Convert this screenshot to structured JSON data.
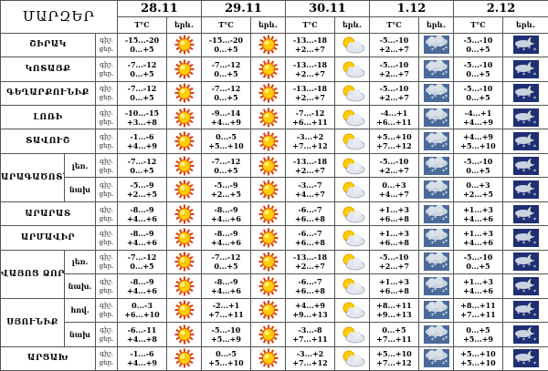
{
  "header": {
    "title": "ՄԱՐԶԵՐ",
    "dates": [
      "28.11",
      "29.11",
      "30.11",
      "1.12",
      "2.12"
    ],
    "temp_label": "T°C",
    "icon_label": "երև.",
    "night_label": "գիշ.",
    "day_label": "ցեր."
  },
  "icons": {
    "sunny": "sun-icon",
    "partly": "sun-cloud-icon",
    "snow": "snow-cloud-icon",
    "snow_moon": "moon-snow-icon"
  },
  "rows": [
    {
      "region": "ՇԻՐԱԿ",
      "sub": "",
      "t": [
        [
          "-15...-20",
          "0...+5"
        ],
        [
          "-15...-20",
          "0...+5"
        ],
        [
          "-13...-18",
          "+2...+7"
        ],
        [
          "-5...-10",
          "+2...+7"
        ],
        [
          "-5...-10",
          "0...+5"
        ]
      ]
    },
    {
      "region": "ԿՈՏԱՅՔ",
      "sub": "",
      "t": [
        [
          "-7...-12",
          "0...+5"
        ],
        [
          "-7...-12",
          "0...+5"
        ],
        [
          "-13...-18",
          "+2...+7"
        ],
        [
          "-5...-10",
          "+2...+7"
        ],
        [
          "-5...-10",
          "0...+5"
        ]
      ]
    },
    {
      "region": "ԳԵՂԱՐՔՈՒՆԻՔ",
      "sub": "",
      "t": [
        [
          "-7...-12",
          "0...+5"
        ],
        [
          "-7...-12",
          "0...+5"
        ],
        [
          "-13...-18",
          "+2...+7"
        ],
        [
          "-5...-10",
          "+2...+7"
        ],
        [
          "-5...-10",
          "0...+5"
        ]
      ]
    },
    {
      "region": "ԼՈՌԻ",
      "sub": "",
      "t": [
        [
          "-10...-15",
          "+3...+8"
        ],
        [
          "-9...-14",
          "+4...+9"
        ],
        [
          "-7...-12",
          "+6...+11"
        ],
        [
          "-4...+1",
          "+6...+11"
        ],
        [
          "-4...+1",
          "+4...+9"
        ]
      ]
    },
    {
      "region": "ՏԱՎՈՒՇ",
      "sub": "",
      "t": [
        [
          "-1...-6",
          "+4...+9"
        ],
        [
          "0...-5",
          "+5...+10"
        ],
        [
          "-3...+2",
          "+7...+12"
        ],
        [
          "+5...+10",
          "+7...+12"
        ],
        [
          "+4...+9",
          "+5...+10"
        ]
      ]
    },
    {
      "region": "ԱՐԱԳԱԾՈՏՆ",
      "sub": "լեռ.",
      "t": [
        [
          "-7...-12",
          "0...+5"
        ],
        [
          "-7...-12",
          "0...+5"
        ],
        [
          "-13...-18",
          "+2...+7"
        ],
        [
          "-5...-10",
          "+2...+7"
        ],
        [
          "-5...-10",
          "0...+5"
        ]
      ]
    },
    {
      "region": "",
      "sub": "նախ",
      "t": [
        [
          "-5...-9",
          "+2...+5"
        ],
        [
          "-5...-9",
          "+2...+5"
        ],
        [
          "-3...-7",
          "+4...+7"
        ],
        [
          "0...+3",
          "+4...+7"
        ],
        [
          "0...+3",
          "+2...+5"
        ]
      ]
    },
    {
      "region": "ԱՐԱՐԱՏ",
      "sub": "",
      "t": [
        [
          "-8...-9",
          "+4...+6"
        ],
        [
          "-8...-9",
          "+4...+6"
        ],
        [
          "-6...-7",
          "+6...+8"
        ],
        [
          "+1...+3",
          "+6...+8"
        ],
        [
          "+1...+3",
          "+4...+6"
        ]
      ]
    },
    {
      "region": "ԱՐՄԱՎԻՐ",
      "sub": "",
      "t": [
        [
          "-8...-9",
          "+4...+6"
        ],
        [
          "-8...-9",
          "+4...+6"
        ],
        [
          "-6...-7",
          "+6...+8"
        ],
        [
          "+1...+3",
          "+6...+8"
        ],
        [
          "+1...+3",
          "+4...+6"
        ]
      ]
    },
    {
      "region": "ՎԱՅՈՑ ՁՈՐ",
      "sub": "լեռ.",
      "t": [
        [
          "-7...-12",
          "0...+5"
        ],
        [
          "-7...-12",
          "0...+5"
        ],
        [
          "-13...-18",
          "+2...+7"
        ],
        [
          "-5...-10",
          "+2...+7"
        ],
        [
          "-5...-10",
          "0...+5"
        ]
      ]
    },
    {
      "region": "",
      "sub": "նախ.",
      "t": [
        [
          "-8...-9",
          "+4...+6"
        ],
        [
          "-8...-9",
          "+4...+6"
        ],
        [
          "-6...-7",
          "+6...+8"
        ],
        [
          "+1...+3",
          "+6...+8"
        ],
        [
          "+1...+3",
          "+4...+6"
        ]
      ]
    },
    {
      "region": "ՍՅՈՒՆԻՔ",
      "sub": "հով.",
      "t": [
        [
          "0...-3",
          "+6...+10"
        ],
        [
          "-2...+1",
          "+7...+11"
        ],
        [
          "+4...+9",
          "+9...+13"
        ],
        [
          "+8...+11",
          "+9...+13"
        ],
        [
          "+8...+11",
          "+7...+11"
        ]
      ]
    },
    {
      "region": "",
      "sub": "նախ",
      "t": [
        [
          "-6...-11",
          "+4...+8"
        ],
        [
          "-5...-10",
          "+5...+9"
        ],
        [
          "-3...-8",
          "+7...+11"
        ],
        [
          "0...+5",
          "+7...+11"
        ],
        [
          "0...+5",
          "+5...+9"
        ]
      ]
    },
    {
      "region": "ԱՐՑԱԽ",
      "sub": "",
      "t": [
        [
          "-1...-6",
          "+4...+9"
        ],
        [
          "0...-5",
          "+5...+10"
        ],
        [
          "-3...+2",
          "+7...+12"
        ],
        [
          "+5...+10",
          "+7...+12"
        ],
        [
          "+5...+10",
          "+5...+10"
        ]
      ]
    }
  ]
}
